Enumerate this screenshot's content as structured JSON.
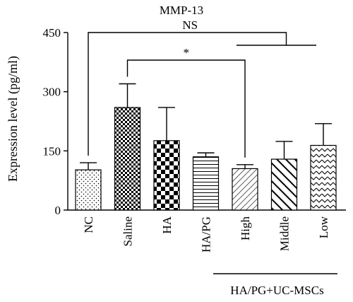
{
  "chart_data": {
    "type": "bar",
    "title": "MMP-13",
    "ylabel": "Expression level (pg/ml)",
    "xlabel": "",
    "ylim": [
      0,
      450
    ],
    "yticks": [
      0,
      150,
      300,
      450
    ],
    "categories": [
      "NC",
      "Saline",
      "HA",
      "HA/PG",
      "High",
      "Middle",
      "Low"
    ],
    "values": [
      102,
      260,
      176,
      135,
      105,
      129,
      164
    ],
    "errors": [
      18,
      60,
      84,
      10,
      10,
      45,
      55
    ],
    "patterns": [
      "dots",
      "checker",
      "checker-large",
      "hlines",
      "diag-right",
      "diag-bold",
      "chevron"
    ],
    "group_label": {
      "text": "HA/PG+UC-MSCs",
      "from_category": 4,
      "to_category": 6
    },
    "annotations": [
      {
        "text": "NS",
        "from_category": 0,
        "to_bracket_center_of": [
          4,
          6
        ]
      },
      {
        "text": "*",
        "from_category": 1,
        "to_category": 4
      }
    ],
    "grid": false,
    "legend": "none"
  }
}
